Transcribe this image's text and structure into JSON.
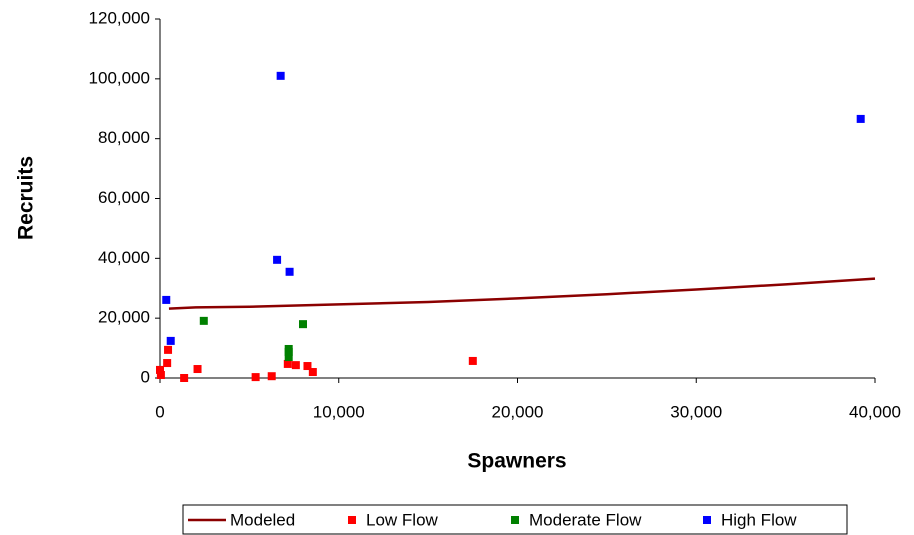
{
  "chart_data": {
    "type": "scatter",
    "xlabel": "Spawners",
    "ylabel": "Recruits",
    "xlim": [
      0,
      40000
    ],
    "ylim": [
      0,
      120000
    ],
    "xticks": [
      0,
      {
        "value": 10000,
        "label": "10,000"
      },
      {
        "value": 20000,
        "label": "20,000"
      },
      {
        "value": 30000,
        "label": "30,000"
      },
      {
        "value": 40000,
        "label": "40,000"
      }
    ],
    "yticks": [
      0,
      {
        "value": 20000,
        "label": "20,000"
      },
      {
        "value": 40000,
        "label": "40,000"
      },
      {
        "value": 60000,
        "label": "60,000"
      },
      {
        "value": 80000,
        "label": "80,000"
      },
      {
        "value": 100000,
        "label": "100,000"
      },
      {
        "value": 120000,
        "label": "120,000"
      }
    ],
    "grid": false,
    "legend": "bottom",
    "series": [
      {
        "name": "Modeled",
        "color": "#8b0000",
        "style": "line",
        "x": [
          500,
          2000,
          5000,
          10000,
          15000,
          20000,
          25000,
          30000,
          35000,
          40000
        ],
        "values": [
          23200,
          23600,
          23800,
          24600,
          25400,
          26600,
          28000,
          29600,
          31300,
          33200
        ]
      },
      {
        "name": "Low Flow",
        "color": "#ff0000",
        "style": "marker",
        "x": [
          0,
          50,
          400,
          450,
          1350,
          2100,
          5350,
          6250,
          7150,
          7600,
          8250,
          8550,
          17500
        ],
        "values": [
          2700,
          1000,
          5000,
          9400,
          0,
          3000,
          300,
          600,
          4700,
          4300,
          4000,
          2000,
          5700
        ]
      },
      {
        "name": "Moderate Flow",
        "color": "#008000",
        "style": "marker",
        "x": [
          2450,
          8000,
          7200,
          7200,
          7200
        ],
        "values": [
          19100,
          18000,
          9700,
          8700,
          7000
        ]
      },
      {
        "name": "High Flow",
        "color": "#0000ff",
        "style": "marker",
        "x": [
          350,
          600,
          6750,
          6550,
          7250,
          39200
        ],
        "values": [
          26100,
          12400,
          101000,
          39500,
          35500,
          86600
        ]
      }
    ]
  }
}
